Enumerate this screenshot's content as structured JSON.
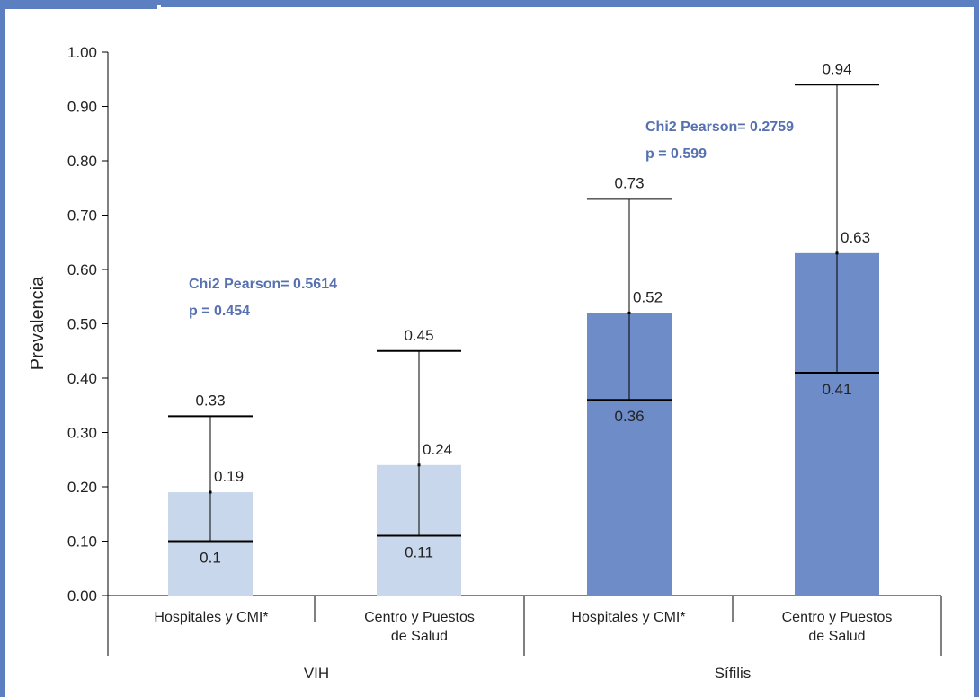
{
  "chart_data": {
    "type": "bar",
    "ylabel": "Prevalencia",
    "ylim": [
      0,
      1
    ],
    "yticks": [
      "0.00",
      "0.10",
      "0.20",
      "0.30",
      "0.40",
      "0.50",
      "0.60",
      "0.70",
      "0.80",
      "0.90",
      "1.00"
    ],
    "groups": [
      {
        "name": "VIH",
        "color": "#c8d7ec",
        "annotation": [
          "Chi2 Pearson= 0.5614",
          "p = 0.454"
        ],
        "bars": [
          {
            "category": "Hospitales y CMI*",
            "value": 0.19,
            "value_label": "0.19",
            "lower": 0.1,
            "lower_label": "0.1",
            "upper": 0.33,
            "upper_label": "0.33"
          },
          {
            "category": "Centro y Puestos de Salud",
            "value": 0.24,
            "value_label": "0.24",
            "lower": 0.11,
            "lower_label": "0.11",
            "upper": 0.45,
            "upper_label": "0.45"
          }
        ]
      },
      {
        "name": "Sífilis",
        "color": "#6d8cc8",
        "annotation": [
          "Chi2 Pearson= 0.2759",
          "p = 0.599"
        ],
        "bars": [
          {
            "category": "Hospitales y CMI*",
            "value": 0.52,
            "value_label": "0.52",
            "lower": 0.36,
            "lower_label": "0.36",
            "upper": 0.73,
            "upper_label": "0.73"
          },
          {
            "category": "Centro y Puestos de Salud",
            "value": 0.63,
            "value_label": "0.63",
            "lower": 0.41,
            "lower_label": "0.41",
            "upper": 0.94,
            "upper_label": "0.94"
          }
        ]
      }
    ],
    "colors": {
      "frame": "#5b7fc0",
      "annotation_text": "#5670b0",
      "axis": "#000000"
    }
  }
}
